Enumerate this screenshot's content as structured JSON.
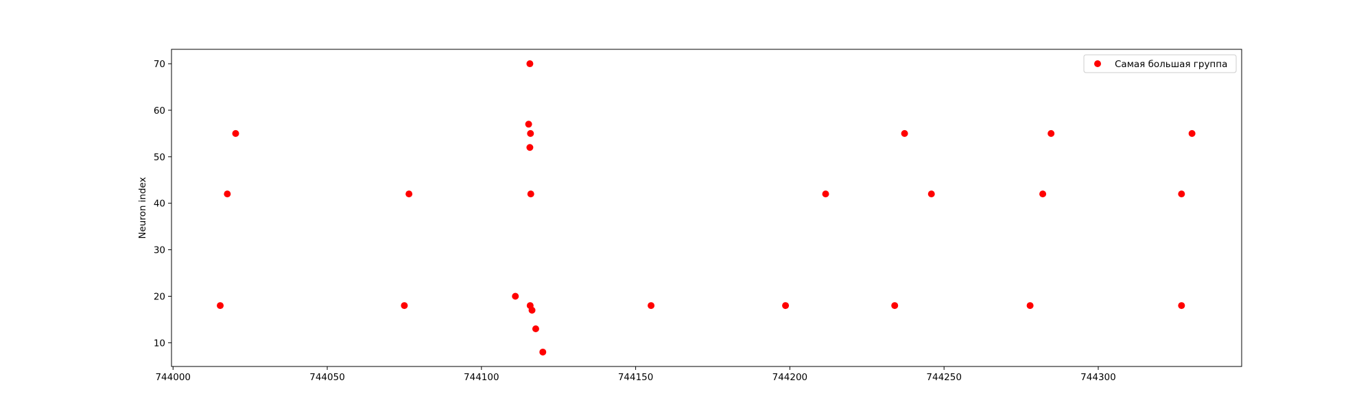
{
  "chart_data": {
    "type": "scatter",
    "title": "",
    "xlabel": "",
    "ylabel": "Neuron index",
    "xlim": [
      743999.5,
      744346.5
    ],
    "ylim": [
      4.9,
      73.1
    ],
    "xticks": [
      744000,
      744050,
      744100,
      744150,
      744200,
      744250,
      744300
    ],
    "yticks": [
      10,
      20,
      30,
      40,
      50,
      60,
      70
    ],
    "grid": false,
    "legend_position": "top-right",
    "series": [
      {
        "name": "Самая большая группа",
        "color": "#ff0000",
        "marker": "circle",
        "points": [
          {
            "x": 744015.3,
            "y": 18
          },
          {
            "x": 744017.6,
            "y": 42
          },
          {
            "x": 744020.3,
            "y": 55
          },
          {
            "x": 744075.0,
            "y": 18
          },
          {
            "x": 744076.5,
            "y": 42
          },
          {
            "x": 744111.0,
            "y": 20
          },
          {
            "x": 744115.3,
            "y": 57
          },
          {
            "x": 744115.7,
            "y": 70
          },
          {
            "x": 744115.7,
            "y": 52
          },
          {
            "x": 744115.9,
            "y": 55
          },
          {
            "x": 744116.0,
            "y": 42
          },
          {
            "x": 744115.8,
            "y": 18
          },
          {
            "x": 744116.4,
            "y": 17
          },
          {
            "x": 744117.6,
            "y": 13
          },
          {
            "x": 744119.9,
            "y": 8
          },
          {
            "x": 744155.0,
            "y": 18
          },
          {
            "x": 744198.6,
            "y": 18
          },
          {
            "x": 744211.6,
            "y": 42
          },
          {
            "x": 744234.0,
            "y": 18
          },
          {
            "x": 744237.2,
            "y": 55
          },
          {
            "x": 744245.9,
            "y": 42
          },
          {
            "x": 744277.9,
            "y": 18
          },
          {
            "x": 744282.0,
            "y": 42
          },
          {
            "x": 744284.7,
            "y": 55
          },
          {
            "x": 744327.0,
            "y": 18
          },
          {
            "x": 744327.0,
            "y": 42
          },
          {
            "x": 744330.4,
            "y": 55
          }
        ]
      }
    ]
  }
}
